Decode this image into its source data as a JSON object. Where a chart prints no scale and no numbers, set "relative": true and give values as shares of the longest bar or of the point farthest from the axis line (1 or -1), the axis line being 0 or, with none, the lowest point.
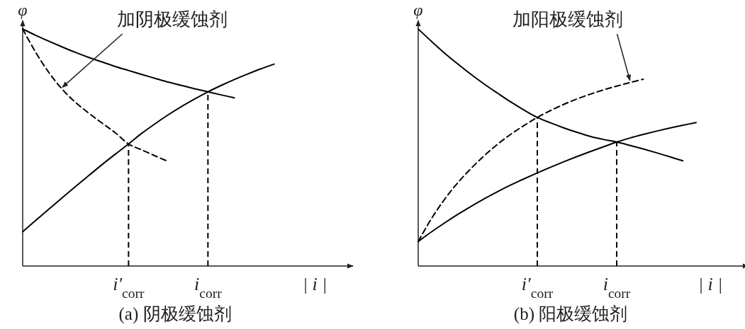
{
  "chart_data": [
    {
      "type": "line",
      "title": "(a) 阴极缓蚀剂",
      "xlabel": "| i |",
      "ylabel": "φ",
      "relative": true,
      "categories": [
        null,
        null,
        null,
        null,
        null,
        null,
        null,
        null,
        "i′$_{corr}$",
        null,
        null,
        null,
        null,
        null,
        "i$_{corr}$",
        null,
        null,
        null,
        null,
        null,
        null,
        null,
        null,
        null,
        null
      ],
      "series": [
        {
          "color": "#000000",
          "line_style": "solid",
          "values": [
            1,
            0.973,
            0.948,
            0.924,
            0.901,
            0.88,
            0.861,
            0.842,
            0.825,
            0.808,
            0.792,
            0.776,
            0.762,
            0.748,
            0.735,
            0.722,
            0.71,
            null,
            null,
            null,
            null,
            null,
            null,
            null,
            null
          ]
        },
        {
          "color": "#000000",
          "line_style": "solid",
          "values": [
            0.145,
            0.193,
            0.241,
            0.289,
            0.336,
            0.382,
            0.428,
            0.472,
            0.515,
            0.56,
            0.6,
            0.638,
            0.673,
            0.705,
            0.735,
            0.762,
            0.787,
            0.81,
            0.832,
            0.852,
            null,
            null,
            null,
            null,
            null
          ]
        },
        {
          "color": "#000000",
          "line_style": "dashed",
          "values": [
            1,
            0.9,
            0.815,
            0.745,
            0.69,
            0.645,
            0.603,
            0.562,
            0.515,
            0.49,
            0.465,
            0.441,
            null,
            null,
            null,
            null,
            null,
            null,
            null,
            null,
            null,
            null,
            null,
            null,
            null
          ]
        }
      ],
      "ref_lines": [
        {
          "axis": "x",
          "value": "i′$_{corr}$",
          "line_style": "dashed"
        },
        {
          "axis": "x",
          "value": "i$_{corr}$",
          "line_style": "dashed"
        }
      ],
      "annotations": [
        "加阴极缓蚀剂"
      ]
    },
    {
      "type": "line",
      "title": "(b) 阳极缓蚀剂",
      "xlabel": "| i |",
      "ylabel": "φ",
      "relative": true,
      "categories": [
        null,
        null,
        null,
        null,
        null,
        null,
        null,
        null,
        null,
        "i′$_{corr}$",
        null,
        null,
        null,
        null,
        null,
        "i$_{corr}$",
        null,
        null,
        null,
        null,
        null,
        null,
        null,
        null,
        null
      ],
      "series": [
        {
          "color": "#000000",
          "line_style": "solid",
          "values": [
            1,
            0.948,
            0.898,
            0.852,
            0.808,
            0.767,
            0.729,
            0.692,
            0.658,
            0.627,
            0.604,
            0.583,
            0.564,
            0.547,
            0.534,
            0.523,
            0.509,
            0.494,
            0.478,
            0.461,
            0.444,
            null,
            null,
            null,
            null
          ]
        },
        {
          "color": "#000000",
          "line_style": "solid",
          "values": [
            0.104,
            0.144,
            0.182,
            0.218,
            0.252,
            0.284,
            0.314,
            0.342,
            0.368,
            0.393,
            0.417,
            0.44,
            0.462,
            0.483,
            0.503,
            0.523,
            0.54,
            0.555,
            0.569,
            0.582,
            0.594,
            0.605,
            null,
            null,
            null
          ]
        },
        {
          "color": "#000000",
          "line_style": "dashed",
          "values": [
            0.104,
            0.2,
            0.282,
            0.352,
            0.412,
            0.466,
            0.514,
            0.556,
            0.593,
            0.627,
            0.656,
            0.682,
            0.705,
            0.725,
            0.743,
            0.759,
            0.774,
            0.788,
            null,
            null,
            null,
            null,
            null,
            null,
            null
          ]
        }
      ],
      "ref_lines": [
        {
          "axis": "x",
          "value": "i′$_{corr}$",
          "line_style": "dashed"
        },
        {
          "axis": "x",
          "value": "i$_{corr}$",
          "line_style": "dashed"
        }
      ],
      "annotations": [
        "加阳极缓蚀剂"
      ]
    }
  ]
}
